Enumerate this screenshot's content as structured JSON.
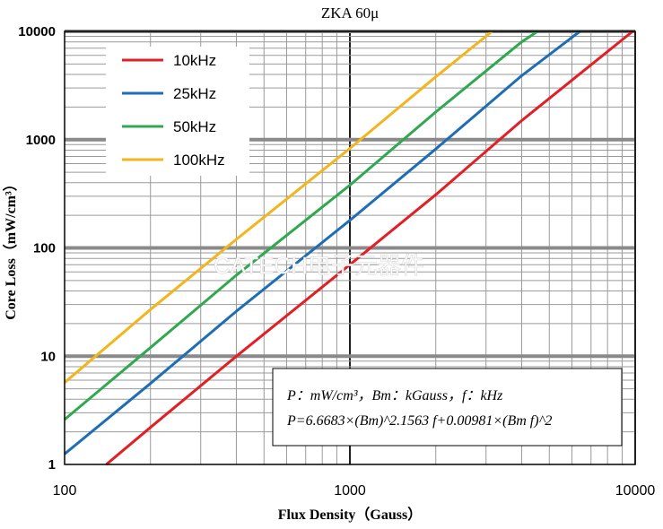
{
  "chart_data": {
    "type": "line",
    "title": "ZKA 60μ",
    "xlabel": "Flux Density（Gauss）",
    "ylabel": "Core Loss（mW/cm³）",
    "x_scale": "log",
    "y_scale": "log",
    "xlim": [
      100,
      10000
    ],
    "ylim": [
      1,
      10000
    ],
    "x_ticks": [
      "100",
      "1000",
      "10000"
    ],
    "y_ticks": [
      "1",
      "10",
      "100",
      "1000",
      "10000"
    ],
    "grid": true,
    "legend_position": "top-left",
    "series": [
      {
        "name": "10kHz",
        "color": "#e31e24",
        "x": [
          140,
          200,
          400,
          1000,
          2000,
          4000,
          9800
        ],
        "y": [
          1.0,
          2.2,
          10,
          70,
          310,
          1500,
          10000
        ]
      },
      {
        "name": "25kHz",
        "color": "#1f6db4",
        "x": [
          100,
          200,
          400,
          1000,
          2000,
          4000,
          6400
        ],
        "y": [
          1.25,
          5.6,
          26,
          180,
          820,
          3900,
          10000
        ]
      },
      {
        "name": "50kHz",
        "color": "#2fa84f",
        "x": [
          100,
          200,
          400,
          1000,
          2000,
          4000,
          4550
        ],
        "y": [
          2.6,
          12,
          56,
          380,
          1800,
          8000,
          10000
        ]
      },
      {
        "name": "100kHz",
        "color": "#f2b51d",
        "x": [
          100,
          200,
          400,
          1000,
          2000,
          3150
        ],
        "y": [
          5.7,
          27,
          120,
          830,
          3800,
          10000
        ]
      }
    ],
    "annotation": {
      "units_line": "P：mW/cm³，Bm：kGauss，f：kHz",
      "formula_line": "P=6.6683×(Bm)^2.1563 f+0.00981×(Bm f)^2"
    },
    "watermark": "CATECH电子元器件"
  }
}
